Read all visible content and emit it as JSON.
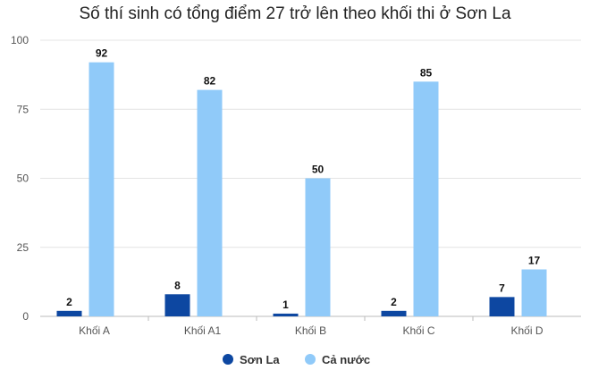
{
  "chart_data": {
    "type": "bar",
    "title": "Số thí sinh có tổng điểm 27 trở lên theo khối thi ở Sơn La",
    "categories": [
      "Khối A",
      "Khối A1",
      "Khối B",
      "Khối C",
      "Khối D"
    ],
    "series": [
      {
        "name": "Sơn La",
        "values": [
          2,
          8,
          1,
          2,
          7
        ],
        "color": "#0d47a1"
      },
      {
        "name": "Cả nước",
        "values": [
          92,
          82,
          50,
          85,
          17
        ],
        "color": "#90caf9"
      }
    ],
    "ylim": [
      0,
      100
    ],
    "yticks": [
      "0",
      "25",
      "50",
      "75",
      "100"
    ],
    "grid": true,
    "legend": "bottom",
    "data_labels": true
  }
}
